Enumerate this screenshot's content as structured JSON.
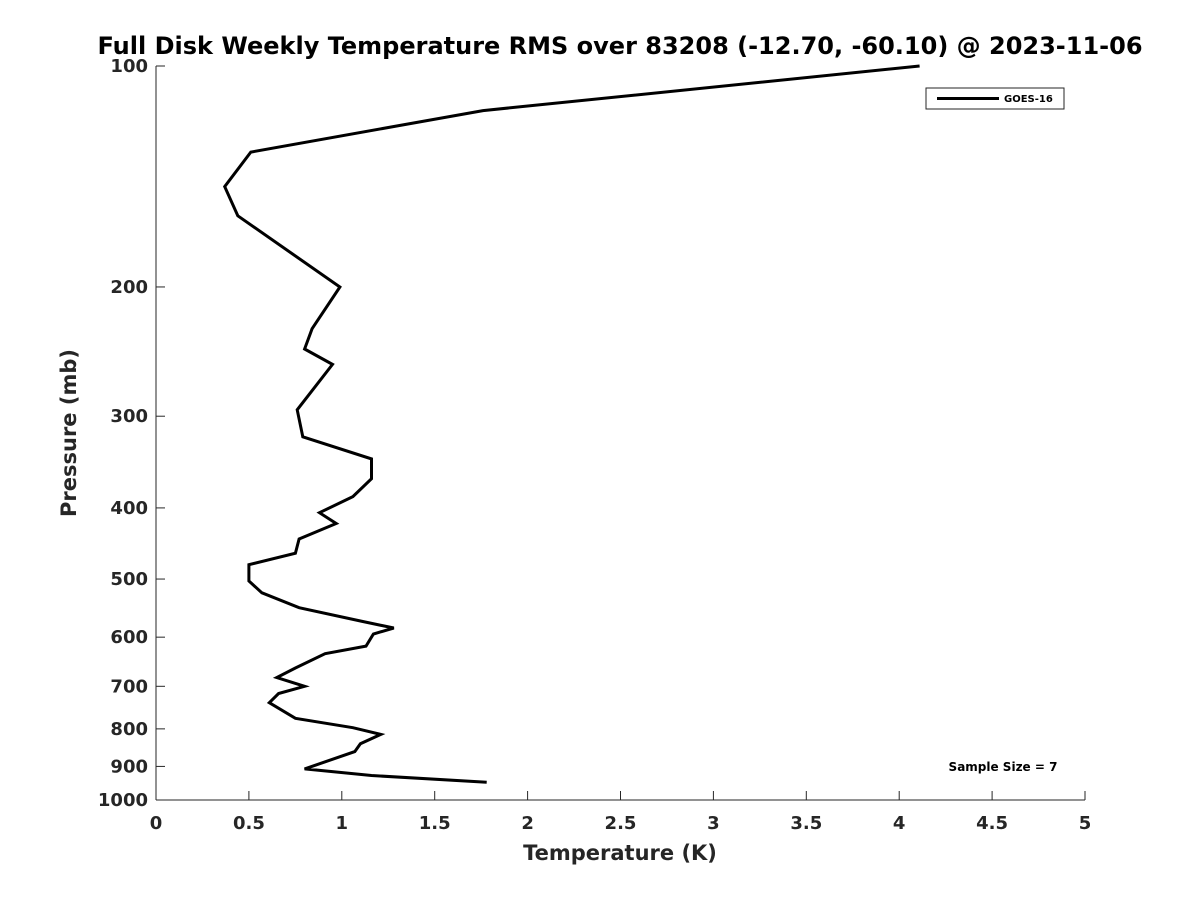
{
  "chart_data": {
    "type": "line",
    "title": "Full Disk Weekly Temperature RMS over 83208 (-12.70, -60.10) @ 2023-11-06",
    "xlabel": "Temperature (K)",
    "ylabel": "Pressure (mb)",
    "xlim": [
      0,
      5
    ],
    "ylim": [
      100,
      1000
    ],
    "y_scale": "log",
    "y_reversed": true,
    "x_ticks": [
      "0",
      "0.5",
      "1",
      "1.5",
      "2",
      "2.5",
      "3",
      "3.5",
      "4",
      "4.5",
      "5"
    ],
    "y_ticks": [
      "100",
      "200",
      "300",
      "400",
      "500",
      "600",
      "700",
      "800",
      "900",
      "1000"
    ],
    "grid": false,
    "legend_position": "top-right",
    "annotation": "Sample Size = 7",
    "series": [
      {
        "name": "GOES-16",
        "color": "#000000",
        "x": [
          4.11,
          1.76,
          0.51,
          0.37,
          0.44,
          0.99,
          0.84,
          0.8,
          0.95,
          0.76,
          0.79,
          1.16,
          1.16,
          1.06,
          0.88,
          0.97,
          0.77,
          0.75,
          0.5,
          0.5,
          0.57,
          0.77,
          1.11,
          1.28,
          1.17,
          1.13,
          0.91,
          0.75,
          0.65,
          0.8,
          0.66,
          0.61,
          0.75,
          1.06,
          1.21,
          1.1,
          1.07,
          0.8,
          1.16,
          1.78
        ],
        "y": [
          100,
          115,
          131,
          146,
          160,
          200,
          228,
          243,
          255,
          294,
          320,
          343,
          365,
          386,
          406,
          420,
          441,
          461,
          478,
          503,
          522,
          547,
          571,
          583,
          594,
          617,
          632,
          661,
          681,
          700,
          716,
          737,
          774,
          797,
          814,
          838,
          859,
          907,
          926,
          946
        ]
      }
    ]
  }
}
